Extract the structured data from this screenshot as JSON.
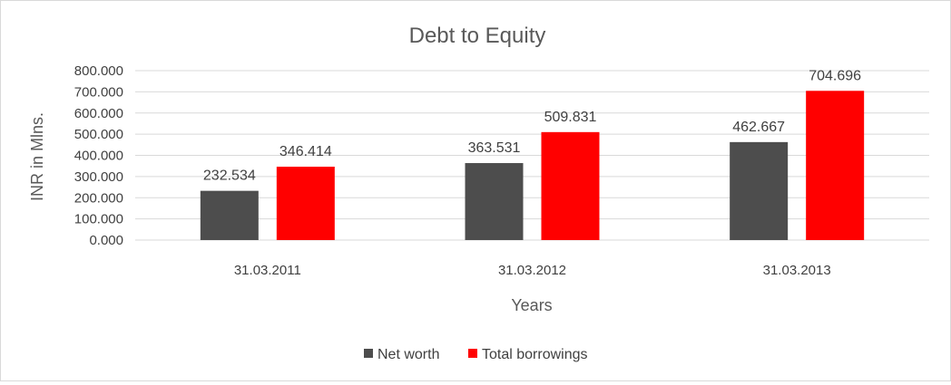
{
  "chart_data": {
    "type": "bar",
    "title": "Debt to Equity",
    "xlabel": "Years",
    "ylabel": "INR in Mlns.",
    "categories": [
      "31.03.2011",
      "31.03.2012",
      "31.03.2013"
    ],
    "series": [
      {
        "name": "Net worth",
        "values": [
          232.534,
          363.531,
          462.667
        ],
        "labels": [
          "232.534",
          "363.531",
          "462.667"
        ],
        "color": "#4d4d4d"
      },
      {
        "name": "Total borrowings",
        "values": [
          346.414,
          509.831,
          704.696
        ],
        "labels": [
          "346.414",
          "509.831",
          "704.696"
        ],
        "color": "#ff0000"
      }
    ],
    "ylim": [
      0,
      800
    ],
    "yticks": [
      0,
      100,
      200,
      300,
      400,
      500,
      600,
      700,
      800
    ],
    "ytick_labels": [
      "0.000",
      "100.000",
      "200.000",
      "300.000",
      "400.000",
      "500.000",
      "600.000",
      "700.000",
      "800.000"
    ],
    "grid": true,
    "legend_position": "bottom"
  }
}
